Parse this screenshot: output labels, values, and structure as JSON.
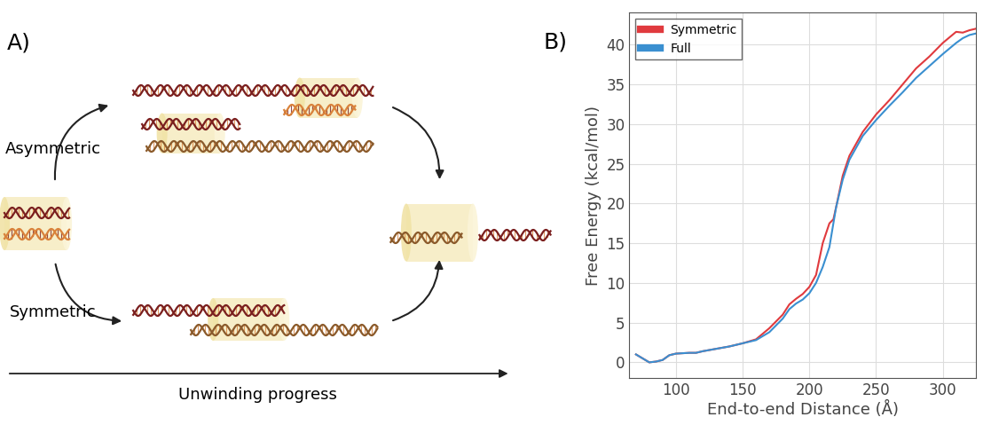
{
  "diagram": {
    "panel_label": "A)",
    "upper_path": "Asymmetric",
    "lower_path": "Symmetric",
    "progress_axis": "Unwinding progress"
  },
  "chart_data": {
    "type": "line",
    "title": "B)",
    "x_label": "End-to-end Distance (Å)",
    "y_label": "Free Energy (kcal/mol)",
    "x": [
      70,
      75,
      80,
      85,
      90,
      95,
      100,
      110,
      115,
      120,
      130,
      140,
      150,
      160,
      170,
      180,
      185,
      190,
      195,
      200,
      205,
      210,
      215,
      218,
      220,
      225,
      230,
      240,
      250,
      260,
      270,
      280,
      290,
      300,
      310,
      315,
      320,
      325
    ],
    "series": [
      {
        "name": "Symmetric",
        "color": "#e03a3e",
        "values": [
          1.0,
          0.5,
          0.0,
          0.1,
          0.3,
          0.9,
          1.1,
          1.2,
          1.2,
          1.4,
          1.7,
          2.0,
          2.4,
          2.9,
          4.3,
          6.0,
          7.3,
          8.0,
          8.6,
          9.5,
          11.0,
          15.0,
          17.5,
          18.0,
          19.5,
          23.5,
          26.0,
          29.0,
          31.2,
          33.0,
          35.0,
          37.0,
          38.5,
          40.2,
          41.6,
          41.5,
          41.8,
          42.0
        ]
      },
      {
        "name": "Full",
        "color": "#3a8fd0",
        "values": [
          1.0,
          0.5,
          0.0,
          0.1,
          0.3,
          0.9,
          1.1,
          1.2,
          1.2,
          1.4,
          1.7,
          2.0,
          2.4,
          2.8,
          3.8,
          5.5,
          6.7,
          7.4,
          7.9,
          8.7,
          10.0,
          12.0,
          14.5,
          17.5,
          19.5,
          23.0,
          25.5,
          28.5,
          30.5,
          32.3,
          34.0,
          35.8,
          37.3,
          38.8,
          40.2,
          40.8,
          41.2,
          41.4
        ]
      }
    ],
    "xlim": [
      65,
      325
    ],
    "xticks": [
      100,
      150,
      200,
      250,
      300
    ],
    "ylim": [
      -2,
      44
    ],
    "yticks": [
      0,
      5,
      10,
      15,
      20,
      25,
      30,
      35,
      40
    ],
    "grid": true,
    "legend": "upper left"
  }
}
